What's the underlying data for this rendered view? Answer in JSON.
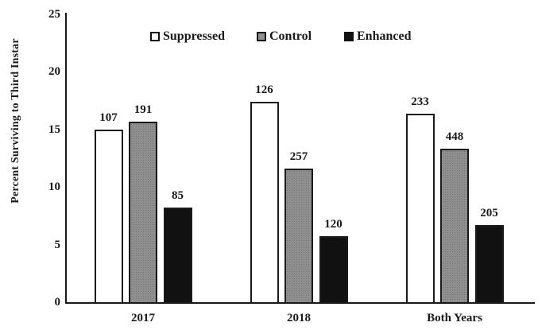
{
  "chart_data": {
    "type": "bar",
    "title": "",
    "xlabel": "",
    "ylabel": "Percent Surviving to Third Instar",
    "categories": [
      "2017",
      "2018",
      "Both Years"
    ],
    "series": [
      {
        "name": "Suppressed",
        "fill": "#ffffff",
        "values": [
          15.0,
          17.4,
          16.4
        ],
        "bar_labels": [
          "107",
          "126",
          "233"
        ]
      },
      {
        "name": "Control",
        "fill": "#8f8f8f",
        "values": [
          15.7,
          11.6,
          13.3
        ],
        "bar_labels": [
          "191",
          "257",
          "448"
        ]
      },
      {
        "name": "Enhanced",
        "fill": "#111111",
        "values": [
          8.2,
          5.7,
          6.7
        ],
        "bar_labels": [
          "85",
          "120",
          "205"
        ]
      }
    ],
    "ylim": [
      0,
      25
    ],
    "yticks": [
      0,
      5,
      10,
      15,
      20,
      25
    ],
    "grid": false,
    "legend_position": "top-center",
    "axis_color": "#1a1a1a",
    "text_color": "#1a1a1a",
    "bar_border_color": "#1a1a1a"
  }
}
